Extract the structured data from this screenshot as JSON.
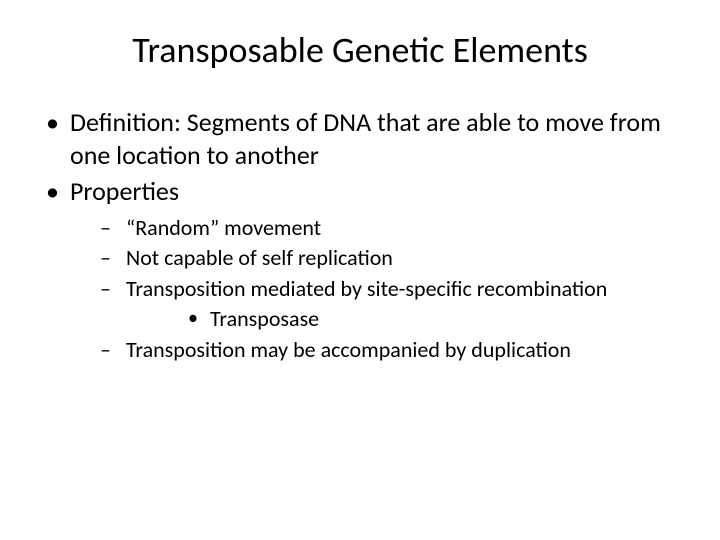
{
  "slide": {
    "title": "Transposable Genetic Elements",
    "background_color": "#ffffff",
    "text_color": "#000000",
    "title_fontsize": 36,
    "body_fontsize_l1": 26,
    "body_fontsize_l2": 22,
    "body_fontsize_l3": 22,
    "font_family": "Calibri",
    "bullets": {
      "l1": [
        "Definition: Segments of DNA that are able to move from one location to another",
        "Properties"
      ],
      "l2": [
        "“Random” movement",
        "Not capable of self replication",
        "Transposition mediated by site-specific recombination",
        "Transposition may be accompanied by duplication"
      ],
      "l3": [
        "Transposase"
      ]
    }
  }
}
